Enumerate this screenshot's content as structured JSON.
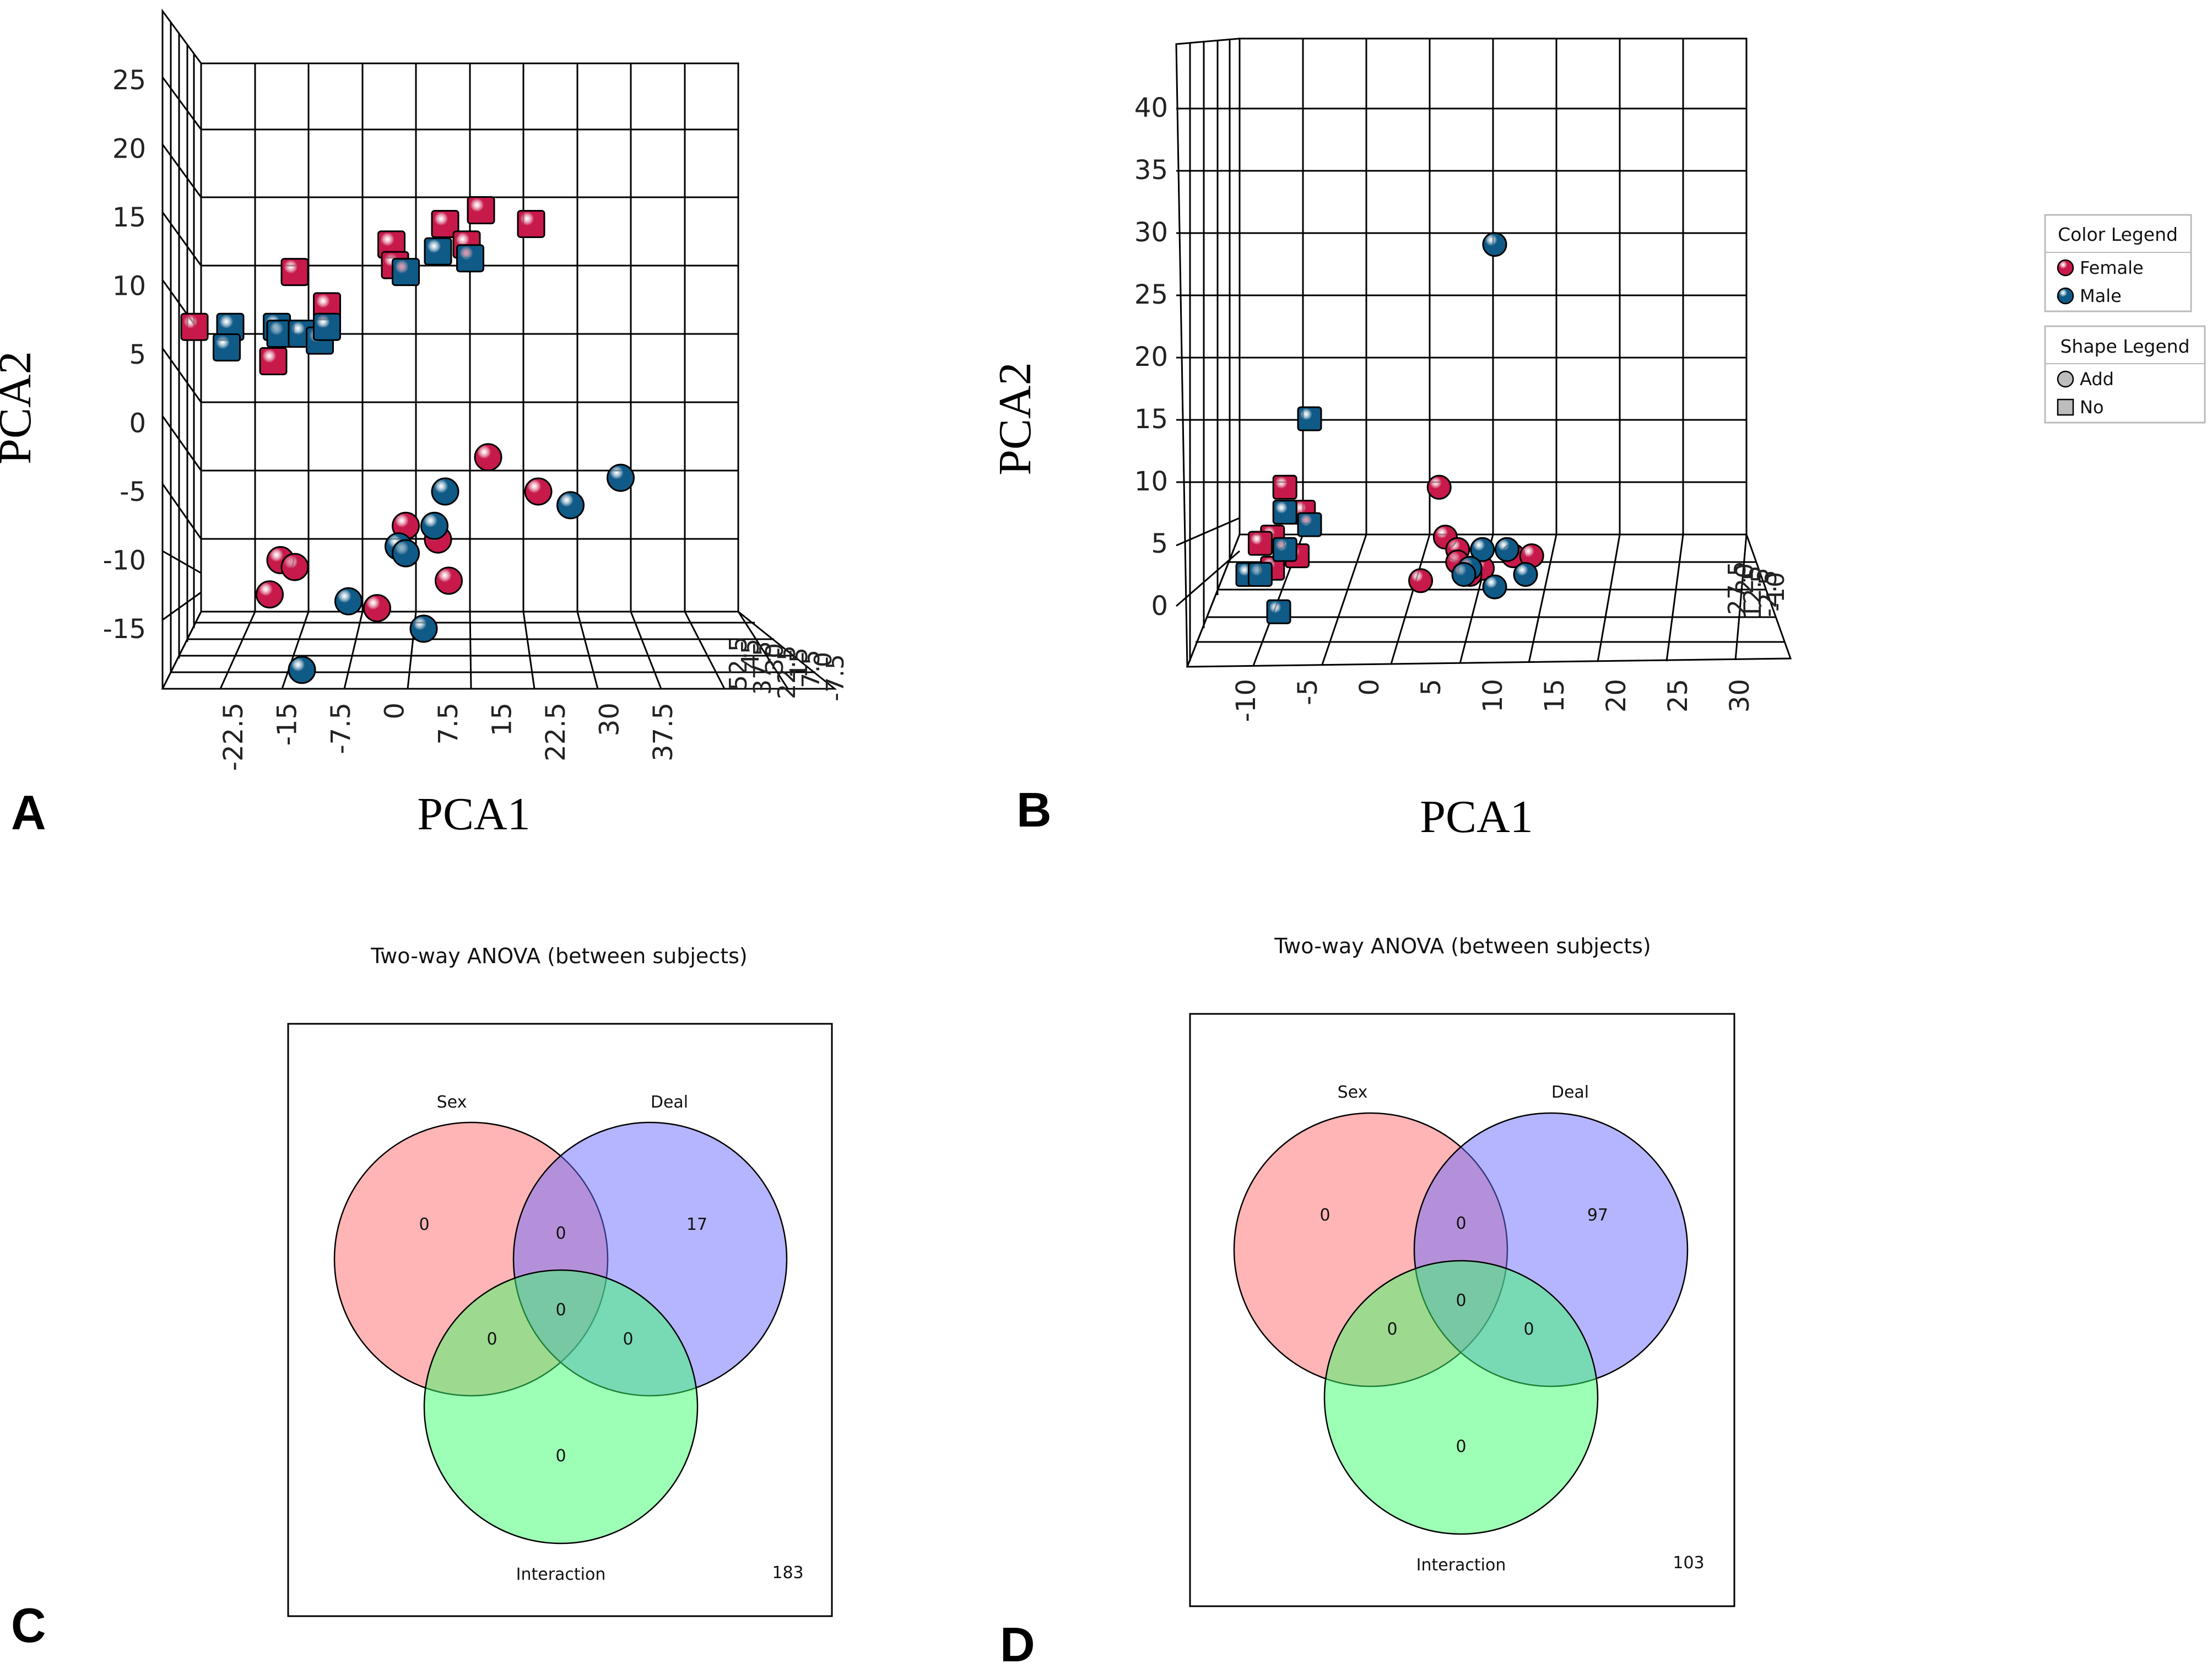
{
  "colors": {
    "female": "#c8194b",
    "male": "#0f5a87",
    "sex": "#ff6b6b",
    "deal": "#6b6bff",
    "interaction": "#3cff6b"
  },
  "panels": {
    "a": "A",
    "b": "B",
    "c": "C",
    "d": "D"
  },
  "chart_data": [
    {
      "panel": "A",
      "type": "scatter",
      "title": "",
      "xlabel": "PCA1",
      "ylabel": "PCA2",
      "x_ticks": [
        "-22.5",
        "-15",
        "-7.5",
        "0",
        "7.5",
        "15",
        "22.5",
        "30",
        "37.5"
      ],
      "y_ticks": [
        "25",
        "20",
        "15",
        "10",
        "5",
        "0",
        "-5",
        "-10",
        "-15"
      ],
      "z_ticks": [
        "52.5",
        "45",
        "37.5",
        "30",
        "22.5",
        "15",
        "7.5",
        "0",
        "-7.5"
      ],
      "xlim": [
        -30,
        37.5
      ],
      "ylim": [
        -20,
        28
      ],
      "series": [
        {
          "name": "Female",
          "points": [
            {
              "x": -26.5,
              "y": 7,
              "shape": "No"
            },
            {
              "x": -15.5,
              "y": 4.5,
              "shape": "No"
            },
            {
              "x": -12.5,
              "y": 11,
              "shape": "No"
            },
            {
              "x": -8,
              "y": 8.5,
              "shape": "No"
            },
            {
              "x": 1,
              "y": 13,
              "shape": "No"
            },
            {
              "x": 1.5,
              "y": 11.5,
              "shape": "No"
            },
            {
              "x": 8.5,
              "y": 14.5,
              "shape": "No"
            },
            {
              "x": 11.5,
              "y": 13,
              "shape": "No"
            },
            {
              "x": 13.5,
              "y": 15.5,
              "shape": "No"
            },
            {
              "x": 20.5,
              "y": 14.5,
              "shape": "No"
            },
            {
              "x": 14.5,
              "y": -2.5,
              "shape": "Add"
            },
            {
              "x": 21.5,
              "y": -5,
              "shape": "Add"
            },
            {
              "x": 3,
              "y": -7.5,
              "shape": "Add"
            },
            {
              "x": 7.5,
              "y": -8.5,
              "shape": "Add"
            },
            {
              "x": 9,
              "y": -11.5,
              "shape": "Add"
            },
            {
              "x": -14.5,
              "y": -10,
              "shape": "Add"
            },
            {
              "x": -12.5,
              "y": -10.5,
              "shape": "Add"
            },
            {
              "x": -16,
              "y": -12.5,
              "shape": "Add"
            },
            {
              "x": -1,
              "y": -13.5,
              "shape": "Add"
            }
          ]
        },
        {
          "name": "Male",
          "points": [
            {
              "x": -21.5,
              "y": 7,
              "shape": "No"
            },
            {
              "x": -22,
              "y": 5.5,
              "shape": "No"
            },
            {
              "x": -15,
              "y": 7,
              "shape": "No"
            },
            {
              "x": -14.5,
              "y": 6.5,
              "shape": "No"
            },
            {
              "x": -11.5,
              "y": 6.5,
              "shape": "No"
            },
            {
              "x": -9,
              "y": 6,
              "shape": "No"
            },
            {
              "x": -8,
              "y": 7,
              "shape": "No"
            },
            {
              "x": 3,
              "y": 11,
              "shape": "No"
            },
            {
              "x": 7.5,
              "y": 12.5,
              "shape": "No"
            },
            {
              "x": 12,
              "y": 12,
              "shape": "No"
            },
            {
              "x": 8.5,
              "y": -5,
              "shape": "Add"
            },
            {
              "x": 7,
              "y": -7.5,
              "shape": "Add"
            },
            {
              "x": 2,
              "y": -9,
              "shape": "Add"
            },
            {
              "x": 3,
              "y": -9.5,
              "shape": "Add"
            },
            {
              "x": -5,
              "y": -13,
              "shape": "Add"
            },
            {
              "x": 5.5,
              "y": -15,
              "shape": "Add"
            },
            {
              "x": -11.5,
              "y": -18,
              "shape": "Add"
            },
            {
              "x": 26,
              "y": -6,
              "shape": "Add"
            },
            {
              "x": 33,
              "y": -4,
              "shape": "Add"
            }
          ]
        }
      ]
    },
    {
      "panel": "B",
      "type": "scatter",
      "title": "",
      "xlabel": "PCA1",
      "ylabel": "PCA2",
      "x_ticks": [
        "-10",
        "-5",
        "0",
        "5",
        "10",
        "15",
        "20",
        "25",
        "30"
      ],
      "y_ticks": [
        "40",
        "35",
        "30",
        "25",
        "20",
        "15",
        "10",
        "5",
        "0"
      ],
      "z_ticks": [
        "27.5",
        "20",
        "12.5",
        "5",
        "-2.5",
        "-10"
      ],
      "xlim": [
        -12,
        30
      ],
      "ylim": [
        -5,
        45
      ],
      "series": [
        {
          "name": "Female",
          "points": [
            {
              "x": -7,
              "y": 9.5,
              "shape": "No"
            },
            {
              "x": -5.5,
              "y": 7.5,
              "shape": "No"
            },
            {
              "x": -8,
              "y": 5.5,
              "shape": "No"
            },
            {
              "x": -9,
              "y": 5,
              "shape": "No"
            },
            {
              "x": -6,
              "y": 4,
              "shape": "No"
            },
            {
              "x": -8,
              "y": 3,
              "shape": "No"
            },
            {
              "x": 5.5,
              "y": 9.5,
              "shape": "Add"
            },
            {
              "x": 6,
              "y": 5.5,
              "shape": "Add"
            },
            {
              "x": 7,
              "y": 4.5,
              "shape": "Add"
            },
            {
              "x": 7,
              "y": 3.5,
              "shape": "Add"
            },
            {
              "x": 9,
              "y": 3,
              "shape": "Add"
            },
            {
              "x": 11.5,
              "y": 4,
              "shape": "Add"
            },
            {
              "x": 13,
              "y": 4,
              "shape": "Add"
            },
            {
              "x": 4,
              "y": 2,
              "shape": "Add"
            },
            {
              "x": 8,
              "y": 2.5,
              "shape": "Add"
            }
          ]
        },
        {
          "name": "Male",
          "points": [
            {
              "x": -5,
              "y": 15,
              "shape": "No"
            },
            {
              "x": -7,
              "y": 7.5,
              "shape": "No"
            },
            {
              "x": -5,
              "y": 6.5,
              "shape": "No"
            },
            {
              "x": -7,
              "y": 4.5,
              "shape": "No"
            },
            {
              "x": -10,
              "y": 2.5,
              "shape": "No"
            },
            {
              "x": -9,
              "y": 2.5,
              "shape": "No"
            },
            {
              "x": -7.5,
              "y": -0.5,
              "shape": "No"
            },
            {
              "x": 10,
              "y": 29,
              "shape": "Add"
            },
            {
              "x": 9,
              "y": 4.5,
              "shape": "Add"
            },
            {
              "x": 11,
              "y": 4.5,
              "shape": "Add"
            },
            {
              "x": 8,
              "y": 3,
              "shape": "Add"
            },
            {
              "x": 7.5,
              "y": 2.5,
              "shape": "Add"
            },
            {
              "x": 12.5,
              "y": 2.5,
              "shape": "Add"
            },
            {
              "x": 10,
              "y": 1.5,
              "shape": "Add"
            }
          ]
        }
      ],
      "color_legend": {
        "title": "Color Legend",
        "items": [
          "Female",
          "Male"
        ]
      },
      "shape_legend": {
        "title": "Shape Legend",
        "items": [
          "Add",
          "No"
        ]
      }
    },
    {
      "panel": "C",
      "type": "venn",
      "title": "Two-way ANOVA (between subjects)",
      "sets": [
        "Sex",
        "Deal",
        "Interaction"
      ],
      "regions": {
        "sex_only": "0",
        "deal_only": "17",
        "interaction_only": "0",
        "sex_deal": "0",
        "sex_interaction": "0",
        "deal_interaction": "0",
        "all": "0",
        "outside": "183"
      }
    },
    {
      "panel": "D",
      "type": "venn",
      "title": "Two-way ANOVA (between subjects)",
      "sets": [
        "Sex",
        "Deal",
        "Interaction"
      ],
      "regions": {
        "sex_only": "0",
        "deal_only": "97",
        "interaction_only": "0",
        "sex_deal": "0",
        "sex_interaction": "0",
        "deal_interaction": "0",
        "all": "0",
        "outside": "103"
      }
    }
  ]
}
